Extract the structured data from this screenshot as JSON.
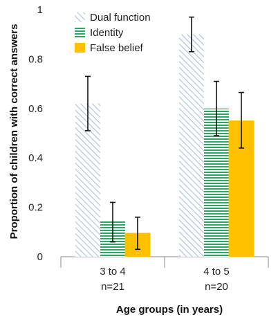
{
  "chart_data": {
    "type": "bar",
    "xlabel": "Age groups (in years)",
    "ylabel": "Proportion of children with correct answers",
    "ylim": [
      0,
      1
    ],
    "yticks": [
      "0",
      "0.2",
      "0.4",
      "0.6",
      "0.8",
      "1"
    ],
    "categories": [
      {
        "name": "3 to 4",
        "n": "n=21"
      },
      {
        "name": "4 to 5",
        "n": "n=20"
      }
    ],
    "series": [
      {
        "name": "Dual function",
        "values": [
          0.62,
          0.9
        ],
        "error_low": [
          0.51,
          0.83
        ],
        "error_high": [
          0.73,
          0.97
        ],
        "fill": "hatch-diagonal",
        "color": "#8ea9d8"
      },
      {
        "name": "Identity",
        "values": [
          0.143,
          0.6
        ],
        "error_low": [
          0.06,
          0.49
        ],
        "error_high": [
          0.22,
          0.71
        ],
        "fill": "hatch-horizontal",
        "color": "#2fa565"
      },
      {
        "name": "False belief",
        "values": [
          0.095,
          0.55
        ],
        "error_low": [
          0.03,
          0.44
        ],
        "error_high": [
          0.16,
          0.665
        ],
        "fill": "solid",
        "color": "#ffc000"
      }
    ],
    "legend_position": "top-left",
    "grid": false
  }
}
